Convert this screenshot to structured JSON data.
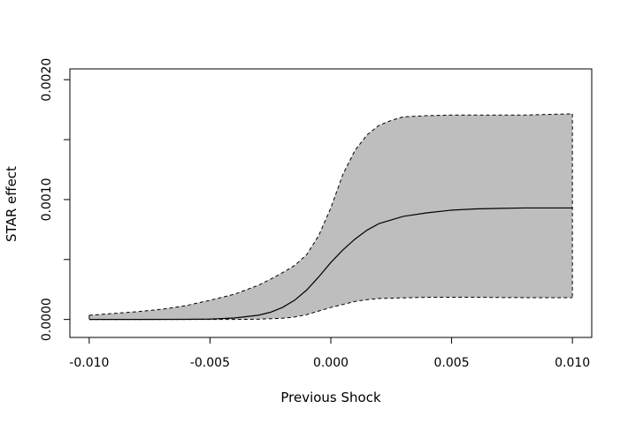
{
  "chart_data": {
    "type": "area",
    "title": "",
    "xlabel": "Previous Shock",
    "ylabel": "STAR effect",
    "xlim": [
      -0.0108,
      0.0108
    ],
    "ylim": [
      -0.00015,
      0.00209
    ],
    "grid": false,
    "x_ticks": [
      -0.01,
      -0.005,
      0.0,
      0.005,
      0.01
    ],
    "x_tick_labels": [
      "-0.010",
      "-0.005",
      "0.000",
      "0.005",
      "0.010"
    ],
    "y_ticks": [
      0.0,
      0.0005,
      0.001,
      0.0015,
      0.002
    ],
    "y_tick_labels": [
      "0.0000",
      "",
      "0.0010",
      "",
      "0.0020"
    ],
    "band_fill_color": "#bebebe",
    "line_color": "#000000",
    "series": [
      {
        "role": "estimate",
        "style": "solid",
        "x": [
          -0.01,
          -0.008,
          -0.006,
          -0.005,
          -0.004,
          -0.003,
          -0.0025,
          -0.002,
          -0.0015,
          -0.001,
          -0.0005,
          0.0,
          0.0005,
          0.001,
          0.0015,
          0.002,
          0.003,
          0.004,
          0.005,
          0.006,
          0.007,
          0.008,
          0.009,
          0.01
        ],
        "values": [
          0.0,
          0.0,
          1e-06,
          3e-06,
          1.2e-05,
          3.5e-05,
          6e-05,
          0.0001,
          0.00016,
          0.000245,
          0.000355,
          0.000475,
          0.00058,
          0.00067,
          0.000745,
          0.0008,
          0.00086,
          0.00089,
          0.000912,
          0.000922,
          0.000927,
          0.00093,
          0.00093,
          0.00093
        ]
      },
      {
        "role": "upper-bound",
        "style": "dashed",
        "x": [
          -0.01,
          -0.009,
          -0.008,
          -0.007,
          -0.006,
          -0.005,
          -0.004,
          -0.003,
          -0.0025,
          -0.002,
          -0.0015,
          -0.001,
          -0.0005,
          0.0,
          0.0005,
          0.001,
          0.0015,
          0.002,
          0.0025,
          0.003,
          0.004,
          0.005,
          0.006,
          0.007,
          0.008,
          0.009,
          0.01
        ],
        "values": [
          3.5e-05,
          5e-05,
          6.5e-05,
          8.5e-05,
          0.000115,
          0.00016,
          0.00021,
          0.000285,
          0.000335,
          0.00039,
          0.00045,
          0.00054,
          0.0007,
          0.00093,
          0.00121,
          0.00141,
          0.00154,
          0.00162,
          0.00166,
          0.00169,
          0.0017,
          0.001705,
          0.001705,
          0.001705,
          0.001705,
          0.00171,
          0.001715
        ]
      },
      {
        "role": "lower-bound",
        "style": "dashed",
        "x": [
          -0.01,
          -0.008,
          -0.006,
          -0.004,
          -0.003,
          -0.002,
          -0.0015,
          -0.001,
          -0.0005,
          0.0,
          0.0005,
          0.001,
          0.0015,
          0.002,
          0.003,
          0.004,
          0.005,
          0.006,
          0.007,
          0.008,
          0.009,
          0.01
        ],
        "values": [
          0.0,
          0.0,
          0.0,
          0.0,
          2e-06,
          1e-05,
          2e-05,
          4e-05,
          7e-05,
          0.0001,
          0.000125,
          0.00015,
          0.000165,
          0.000175,
          0.00018,
          0.000185,
          0.000185,
          0.000185,
          0.000183,
          0.000182,
          0.000182,
          0.000182
        ]
      }
    ]
  }
}
